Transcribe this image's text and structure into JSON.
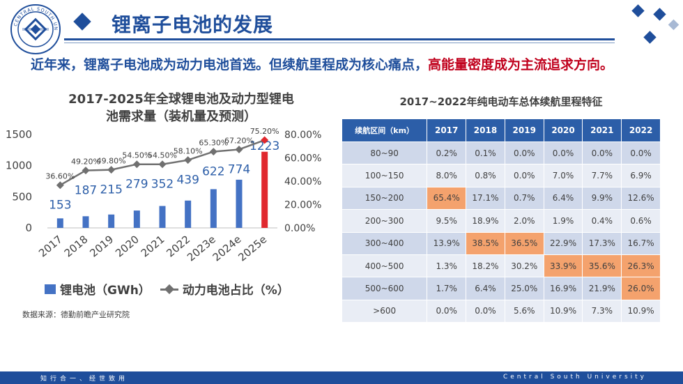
{
  "header": {
    "title": "锂离子电池的发展",
    "logo_text": "CENTRAL SOUTH UNIVERSITY"
  },
  "subtitle": {
    "main": "近年来，锂离子电池成为动力电池首选。但续航里程成为核心痛点，",
    "highlight": "高能量密度成为主流追求方向。"
  },
  "chart_data": {
    "type": "bar",
    "title": "2017-2025年全球锂电池及动力型锂电池需求量（装机量及预测）",
    "title_lines": [
      "2017-2025年全球锂电池及动力型锂电",
      "池需求量（装机量及预测）"
    ],
    "categories": [
      "2017",
      "2018",
      "2019",
      "2020",
      "2021",
      "2022",
      "2023e",
      "2024e",
      "2025e"
    ],
    "series": [
      {
        "name": "锂电池（GWh）",
        "type": "bar",
        "axis": "left",
        "values": [
          153,
          187,
          215,
          279,
          352,
          439,
          622,
          774,
          1223
        ],
        "labels": [
          "153",
          "187",
          "215",
          "279",
          "352",
          "439",
          "622",
          "774",
          "1223"
        ]
      },
      {
        "name": "动力电池占比（%）",
        "type": "line",
        "axis": "right",
        "values": [
          36.6,
          49.2,
          49.8,
          54.5,
          54.5,
          58.1,
          65.3,
          67.2,
          75.2
        ],
        "labels": [
          "36.60%",
          "49.20%",
          "49.80%",
          "54.50%",
          "54.50%",
          "58.10%",
          "65.30%",
          "67.20%",
          "75.20%"
        ]
      }
    ],
    "y_left": {
      "ylim": [
        0,
        1500
      ],
      "ticks": [
        "0",
        "500",
        "1000",
        "1500"
      ],
      "tick_values": [
        0,
        500,
        1000,
        1500
      ]
    },
    "y_right": {
      "ylim": [
        0,
        80
      ],
      "ticks": [
        "0.00%",
        "20.00%",
        "40.00%",
        "60.00%",
        "80.00%"
      ],
      "tick_values": [
        0,
        20,
        40,
        60,
        80
      ]
    },
    "highlight_index": 8,
    "colors": {
      "bar": "#4472c4",
      "bar_highlight": "#e0282e",
      "line": "#707070",
      "label": "#2c5ea8",
      "line_label": "#404040"
    },
    "grid": false,
    "legend": "bottom",
    "legend_items": [
      "锂电池（GWh）",
      "动力电池占比（%）"
    ]
  },
  "source": "数据来源：德勤前瞻产业研究院",
  "table": {
    "title": "2017~2022年纯电动车总体续航里程特征",
    "headers": [
      "续航区间（km）",
      "2017",
      "2018",
      "2019",
      "2020",
      "2021",
      "2022"
    ],
    "rows": [
      {
        "range": "80~90",
        "values": [
          "0.2%",
          "0.1%",
          "0.0%",
          "0.0%",
          "0.0%",
          "0.0%"
        ],
        "highlight": []
      },
      {
        "range": "100~150",
        "values": [
          "8.0%",
          "0.8%",
          "0.0%",
          "7.0%",
          "7.7%",
          "6.9%"
        ],
        "highlight": []
      },
      {
        "range": "150~200",
        "values": [
          "65.4%",
          "17.1%",
          "0.7%",
          "6.4%",
          "9.9%",
          "12.6%"
        ],
        "highlight": [
          0
        ]
      },
      {
        "range": "200~300",
        "values": [
          "9.5%",
          "18.9%",
          "2.0%",
          "1.9%",
          "0.4%",
          "0.6%"
        ],
        "highlight": []
      },
      {
        "range": "300~400",
        "values": [
          "13.9%",
          "38.5%",
          "36.5%",
          "22.9%",
          "17.3%",
          "16.7%"
        ],
        "highlight": [
          1,
          2
        ]
      },
      {
        "range": "400~500",
        "values": [
          "1.3%",
          "18.2%",
          "30.2%",
          "33.9%",
          "35.6%",
          "26.3%"
        ],
        "highlight": [
          3,
          4,
          5
        ]
      },
      {
        "range": "500~600",
        "values": [
          "1.7%",
          "6.4%",
          "25.0%",
          "16.9%",
          "21.9%",
          "26.0%"
        ],
        "highlight": [
          5
        ]
      },
      {
        "range": ">600",
        "values": [
          "0.0%",
          "0.0%",
          "5.6%",
          "10.9%",
          "7.3%",
          "10.9%"
        ],
        "highlight": []
      }
    ],
    "highlight_color": "#f4a26d"
  },
  "footer": {
    "left": "知行合一、经世致用",
    "right": "Central South University"
  }
}
